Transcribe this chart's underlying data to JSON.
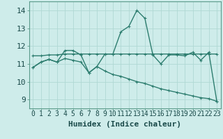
{
  "xlabel": "Humidex (Indice chaleur)",
  "background_color": "#ceecea",
  "line_color": "#2d7d6f",
  "grid_color": "#b0d8d4",
  "spine_color": "#5a9a8a",
  "xlim": [
    -0.5,
    23.5
  ],
  "ylim": [
    8.5,
    14.5
  ],
  "yticks": [
    9,
    10,
    11,
    12,
    13,
    14
  ],
  "xticks": [
    0,
    1,
    2,
    3,
    4,
    5,
    6,
    7,
    8,
    9,
    10,
    11,
    12,
    13,
    14,
    15,
    16,
    17,
    18,
    19,
    20,
    21,
    22,
    23
  ],
  "series1_x": [
    0,
    1,
    2,
    3,
    4,
    5,
    6,
    7,
    8,
    9,
    10,
    11,
    12,
    13,
    14,
    15,
    16,
    17,
    18,
    19,
    20,
    21,
    22,
    23
  ],
  "series1_y": [
    10.8,
    11.1,
    11.25,
    11.1,
    11.75,
    11.75,
    11.5,
    10.5,
    10.85,
    11.55,
    11.55,
    12.8,
    13.1,
    14.0,
    13.55,
    11.5,
    11.0,
    11.5,
    11.5,
    11.45,
    11.65,
    11.2,
    11.65,
    8.9
  ],
  "series2_x": [
    0,
    1,
    2,
    3,
    4,
    5,
    6,
    7,
    8,
    9,
    10,
    11,
    12,
    13,
    14,
    15,
    16,
    17,
    18,
    19,
    20,
    21,
    22,
    23
  ],
  "series2_y": [
    11.45,
    11.45,
    11.5,
    11.5,
    11.55,
    11.55,
    11.55,
    11.55,
    11.55,
    11.55,
    11.55,
    11.55,
    11.55,
    11.55,
    11.55,
    11.55,
    11.55,
    11.55,
    11.55,
    11.55,
    11.55,
    11.55,
    11.55,
    11.55
  ],
  "series3_x": [
    0,
    1,
    2,
    3,
    4,
    5,
    6,
    7,
    8,
    9,
    10,
    11,
    12,
    13,
    14,
    15,
    16,
    17,
    18,
    19,
    20,
    21,
    22,
    23
  ],
  "series3_y": [
    10.8,
    11.1,
    11.25,
    11.1,
    11.3,
    11.2,
    11.1,
    10.5,
    10.85,
    10.6,
    10.4,
    10.3,
    10.15,
    10.0,
    9.9,
    9.75,
    9.6,
    9.5,
    9.4,
    9.3,
    9.2,
    9.1,
    9.05,
    8.9
  ],
  "line_width": 1.0,
  "marker_size": 3.5,
  "font_size_label": 8,
  "font_size_tick": 7
}
